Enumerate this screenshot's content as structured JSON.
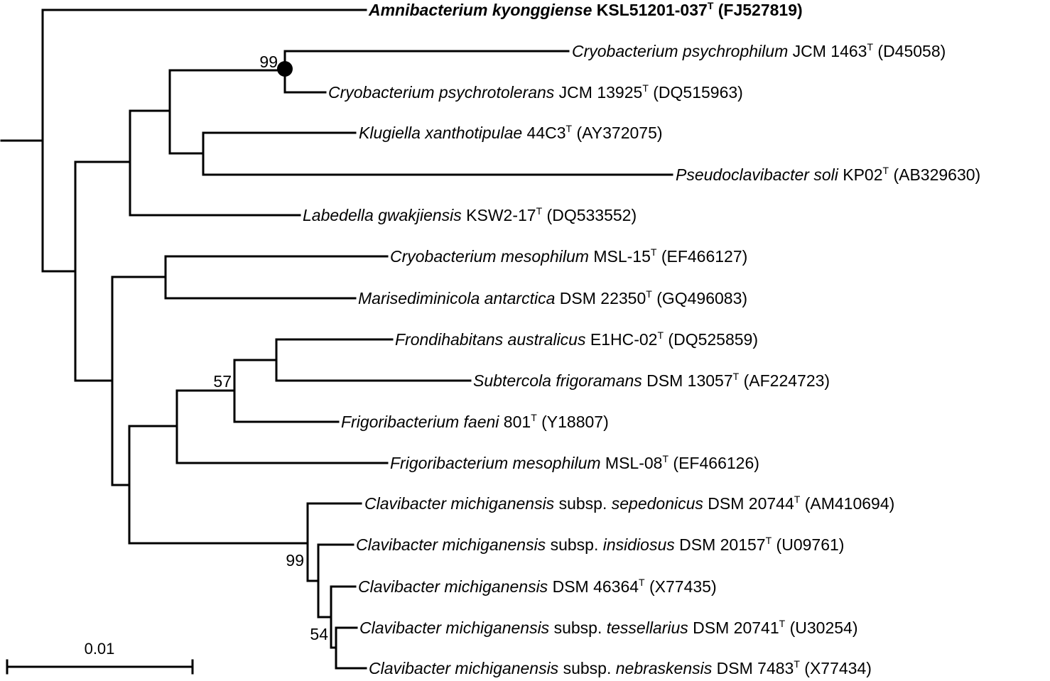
{
  "tree": {
    "line_color": "#000000",
    "taxa": [
      {
        "genus_species": "Amnibacterium kyonggiense",
        "strain": "KSL51201-037",
        "type_mark": "T",
        "accession": "(FJ527819)",
        "bold": true
      },
      {
        "genus_species": "Cryobacterium psychrophilum",
        "strain": "JCM 1463",
        "type_mark": "T",
        "accession": "(D45058)"
      },
      {
        "genus_species": "Cryobacterium psychrotolerans",
        "strain": "JCM 13925",
        "type_mark": "T",
        "accession": "(DQ515963)"
      },
      {
        "genus_species": "Klugiella xanthotipulae",
        "strain": "44C3",
        "type_mark": "T",
        "accession": "(AY372075)"
      },
      {
        "genus_species": "Pseudoclavibacter soli",
        "strain": "KP02",
        "type_mark": "T",
        "accession": "(AB329630)"
      },
      {
        "genus_species": "Labedella gwakjiensis",
        "strain": "KSW2-17",
        "type_mark": "T",
        "accession": "(DQ533552)"
      },
      {
        "genus_species": "Cryobacterium mesophilum",
        "strain": "MSL-15",
        "type_mark": "T",
        "accession": "(EF466127)"
      },
      {
        "genus_species": "Marisediminicola antarctica",
        "strain": "DSM 22350",
        "type_mark": "T",
        "accession": "(GQ496083)"
      },
      {
        "genus_species": "Frondihabitans australicus",
        "strain": "E1HC-02",
        "type_mark": "T",
        "accession": "(DQ525859)"
      },
      {
        "genus_species": "Subtercola frigoramans",
        "strain": "DSM 13057",
        "type_mark": "T",
        "accession": "(AF224723)"
      },
      {
        "genus_species": "Frigoribacterium faeni",
        "strain": "801",
        "type_mark": "T",
        "accession": "(Y18807)"
      },
      {
        "genus_species": "Frigoribacterium mesophilum",
        "strain": "MSL-08",
        "type_mark": "T",
        "accession": "(EF466126)"
      },
      {
        "genus_species": "Clavibacter michiganensis",
        "subsp_word": "subsp.",
        "subspecies": "sepedonicus",
        "strain": "DSM 20744",
        "type_mark": "T",
        "accession": "(AM410694)"
      },
      {
        "genus_species": "Clavibacter michiganensis",
        "subsp_word": "subsp.",
        "subspecies": "insidiosus",
        "strain": "DSM 20157",
        "type_mark": "T",
        "accession": "(U09761)"
      },
      {
        "genus_species": "Clavibacter michiganensis",
        "strain": "DSM 46364",
        "type_mark": "T",
        "accession": "(X77435)"
      },
      {
        "genus_species": "Clavibacter michiganensis",
        "subsp_word": "subsp.",
        "subspecies": "tessellarius",
        "strain": "DSM 20741",
        "type_mark": "T",
        "accession": "(U30254)"
      },
      {
        "genus_species": "Clavibacter michiganensis",
        "subsp_word": "subsp.",
        "subspecies": "nebraskensis",
        "strain": "DSM 7483",
        "type_mark": "T",
        "accession": "(X77434)"
      }
    ],
    "bootstrap_values": [
      "99",
      "57",
      "99",
      "54"
    ],
    "scale_bar": {
      "label": "0.01"
    }
  }
}
